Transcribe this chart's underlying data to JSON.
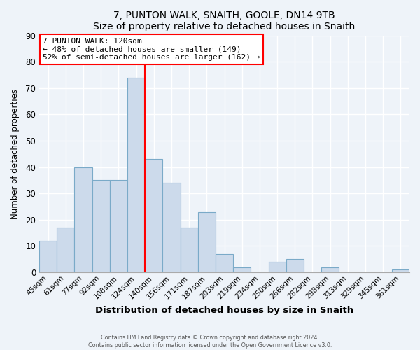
{
  "title": "7, PUNTON WALK, SNAITH, GOOLE, DN14 9TB",
  "subtitle": "Size of property relative to detached houses in Snaith",
  "xlabel": "Distribution of detached houses by size in Snaith",
  "ylabel": "Number of detached properties",
  "bar_labels": [
    "45sqm",
    "61sqm",
    "77sqm",
    "92sqm",
    "108sqm",
    "124sqm",
    "140sqm",
    "156sqm",
    "171sqm",
    "187sqm",
    "203sqm",
    "219sqm",
    "234sqm",
    "250sqm",
    "266sqm",
    "282sqm",
    "298sqm",
    "313sqm",
    "329sqm",
    "345sqm",
    "361sqm"
  ],
  "bar_heights": [
    12,
    17,
    40,
    35,
    35,
    74,
    43,
    34,
    17,
    23,
    7,
    2,
    0,
    4,
    5,
    0,
    2,
    0,
    0,
    0,
    1
  ],
  "bar_color": "#ccdaeb",
  "bar_edge_color": "#7aaac8",
  "red_line_index": 5,
  "annotation_title": "7 PUNTON WALK: 120sqm",
  "annotation_line1": "← 48% of detached houses are smaller (149)",
  "annotation_line2": "52% of semi-detached houses are larger (162) →",
  "ylim": [
    0,
    90
  ],
  "yticks": [
    0,
    10,
    20,
    30,
    40,
    50,
    60,
    70,
    80,
    90
  ],
  "footer1": "Contains HM Land Registry data © Crown copyright and database right 2024.",
  "footer2": "Contains public sector information licensed under the Open Government Licence v3.0.",
  "background_color": "#eef3f9",
  "plot_bg_color": "#eef3f9",
  "grid_color": "#ffffff",
  "spine_color": "#aaaaaa"
}
